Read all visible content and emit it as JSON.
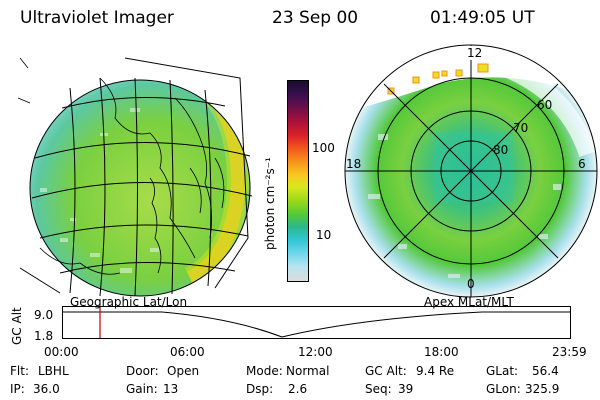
{
  "header": {
    "instrument": "Ultraviolet Imager",
    "date": "23 Sep 00",
    "time": "01:49:05 UT"
  },
  "colorbar": {
    "unit_label": "photon cm⁻²s⁻¹",
    "tick_labels": [
      "100",
      "10"
    ],
    "colors": [
      "#1a0d2e",
      "#3a0f4e",
      "#6a0f4a",
      "#a8103a",
      "#d8202a",
      "#f05020",
      "#f8901a",
      "#f8c820",
      "#d8e81e",
      "#9ad818",
      "#52c83a",
      "#2ab88e",
      "#32c8d8",
      "#78d8ec",
      "#b8e4f0",
      "#dcdcdc"
    ]
  },
  "left_map": {
    "label": "Geographic Lat/Lon"
  },
  "polar_plot": {
    "label": "Apex MLat/MLT",
    "mlt_labels": {
      "top": "12",
      "left": "18",
      "right": "6",
      "bottom": "0"
    },
    "lat_labels": [
      "60",
      "70",
      "80"
    ]
  },
  "altitude_plot": {
    "ylabel": "GC Alt",
    "yticks": [
      "9.0",
      "1.8"
    ],
    "xticks": [
      "00:00",
      "06:00",
      "12:00",
      "18:00",
      "23:59"
    ],
    "current_time_marker": "01:49"
  },
  "status": {
    "flt_label": "Flt:",
    "flt_value": "LBHL",
    "ip_label": "IP:",
    "ip_value": "36.0",
    "door_label": "Door:",
    "door_value": "Open",
    "gain_label": "Gain:",
    "gain_value": "13",
    "mode_label": "Mode:",
    "mode_value": "Normal",
    "dsp_label": "Dsp:",
    "dsp_value": "2.6",
    "gcalt_label": "GC Alt:",
    "gcalt_value": "9.4 Re",
    "seq_label": "Seq:",
    "seq_value": "39",
    "glat_label": "GLat:",
    "glat_value": "56.4",
    "glon_label": "GLon:",
    "glon_value": "325.9"
  }
}
